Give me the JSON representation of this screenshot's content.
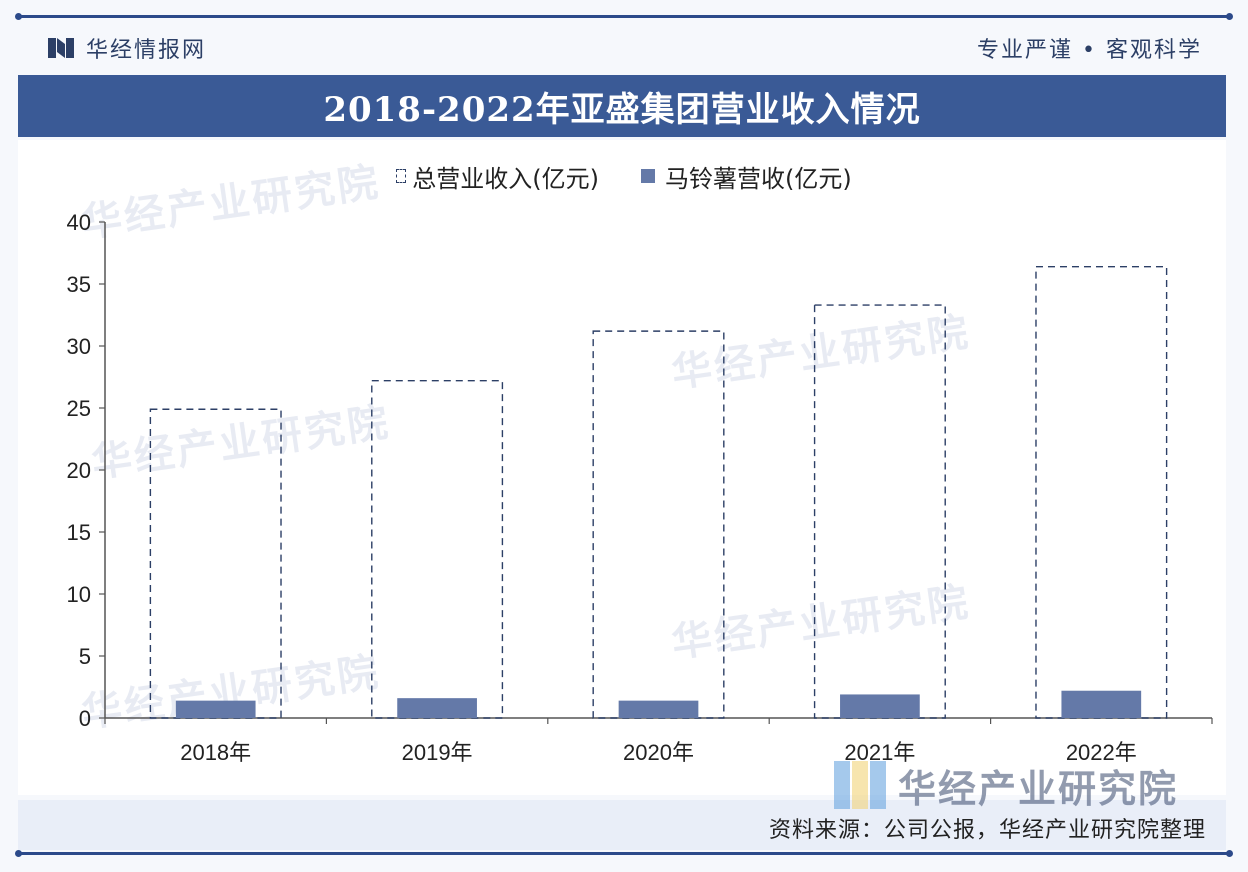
{
  "header": {
    "brand": "华经情报网",
    "slogan": "专业严谨 • 客观科学"
  },
  "title": "2018-2022年亚盛集团营业收入情况",
  "legend": {
    "items": [
      "总营业收入(亿元)",
      "马铃薯营收(亿元)"
    ]
  },
  "footer": {
    "source": "资料来源：公司公报，华经产业研究院整理"
  },
  "watermark": {
    "text": "华经产业研究院"
  },
  "colors": {
    "brand": "#2c4a8a",
    "title_band": "#3a5a96",
    "bar_fill": "#6479a8",
    "dashed_outline": "#2c3f66"
  },
  "chart_data": {
    "type": "bar",
    "title": "2018-2022年亚盛集团营业收入情况",
    "categories": [
      "2018年",
      "2019年",
      "2020年",
      "2021年",
      "2022年"
    ],
    "series": [
      {
        "name": "总营业收入(亿元)",
        "values": [
          24.9,
          27.2,
          31.2,
          33.3,
          36.4
        ],
        "style": "dashed-outline"
      },
      {
        "name": "马铃薯营收(亿元)",
        "values": [
          1.4,
          1.6,
          1.4,
          1.9,
          2.2
        ],
        "style": "solid"
      }
    ],
    "ylim": [
      0,
      40
    ],
    "yticks": [
      0,
      5,
      10,
      15,
      20,
      25,
      30,
      35,
      40
    ],
    "grid": false,
    "legend_position": "top"
  }
}
